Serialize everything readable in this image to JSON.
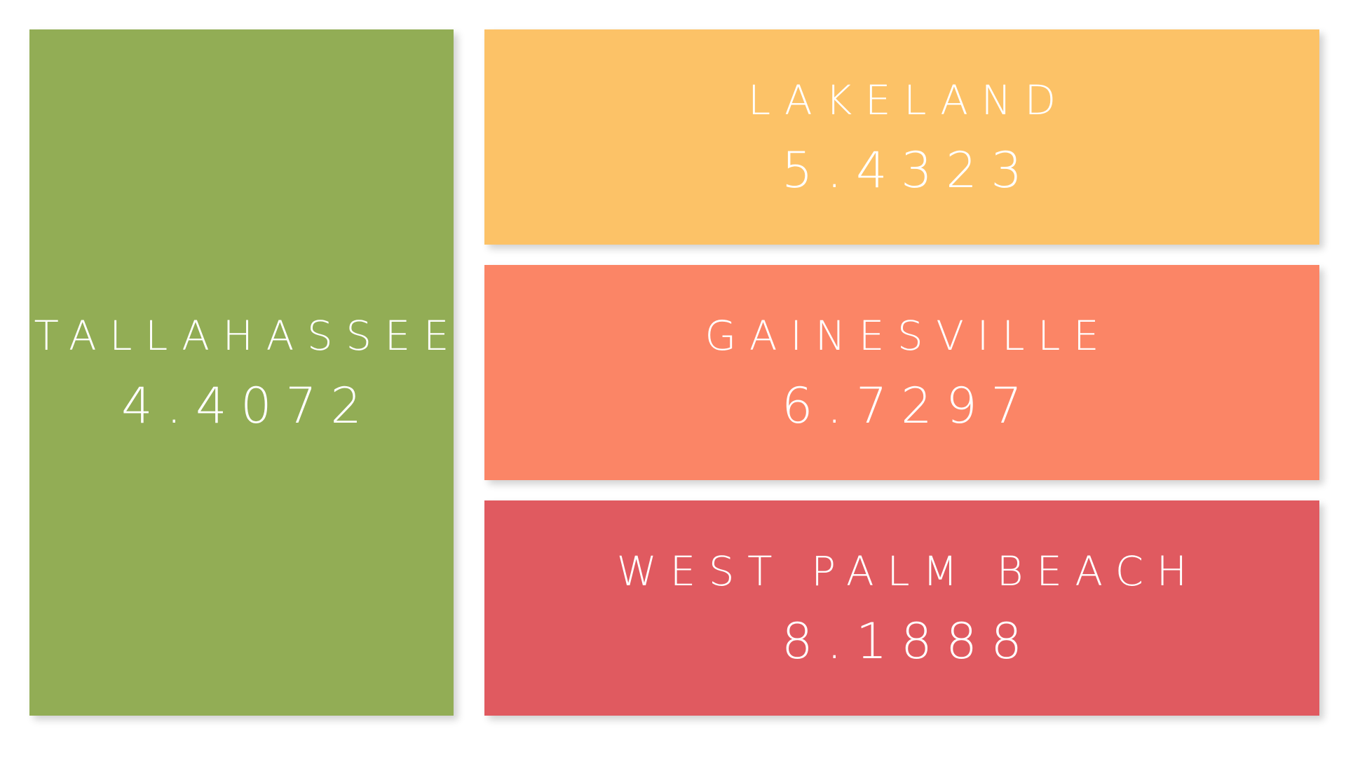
{
  "chart_data": {
    "type": "treemap",
    "items": [
      {
        "label": "TALLAHASSEE",
        "value": "4.4072",
        "color": "#92AD55"
      },
      {
        "label": "LAKELAND",
        "value": "5.4323",
        "color": "#FCC267"
      },
      {
        "label": "GAINESVILLE",
        "value": "6.7297",
        "color": "#FB8566"
      },
      {
        "label": "WEST PALM BEACH",
        "value": "8.1888",
        "color": "#E05A60"
      }
    ]
  }
}
